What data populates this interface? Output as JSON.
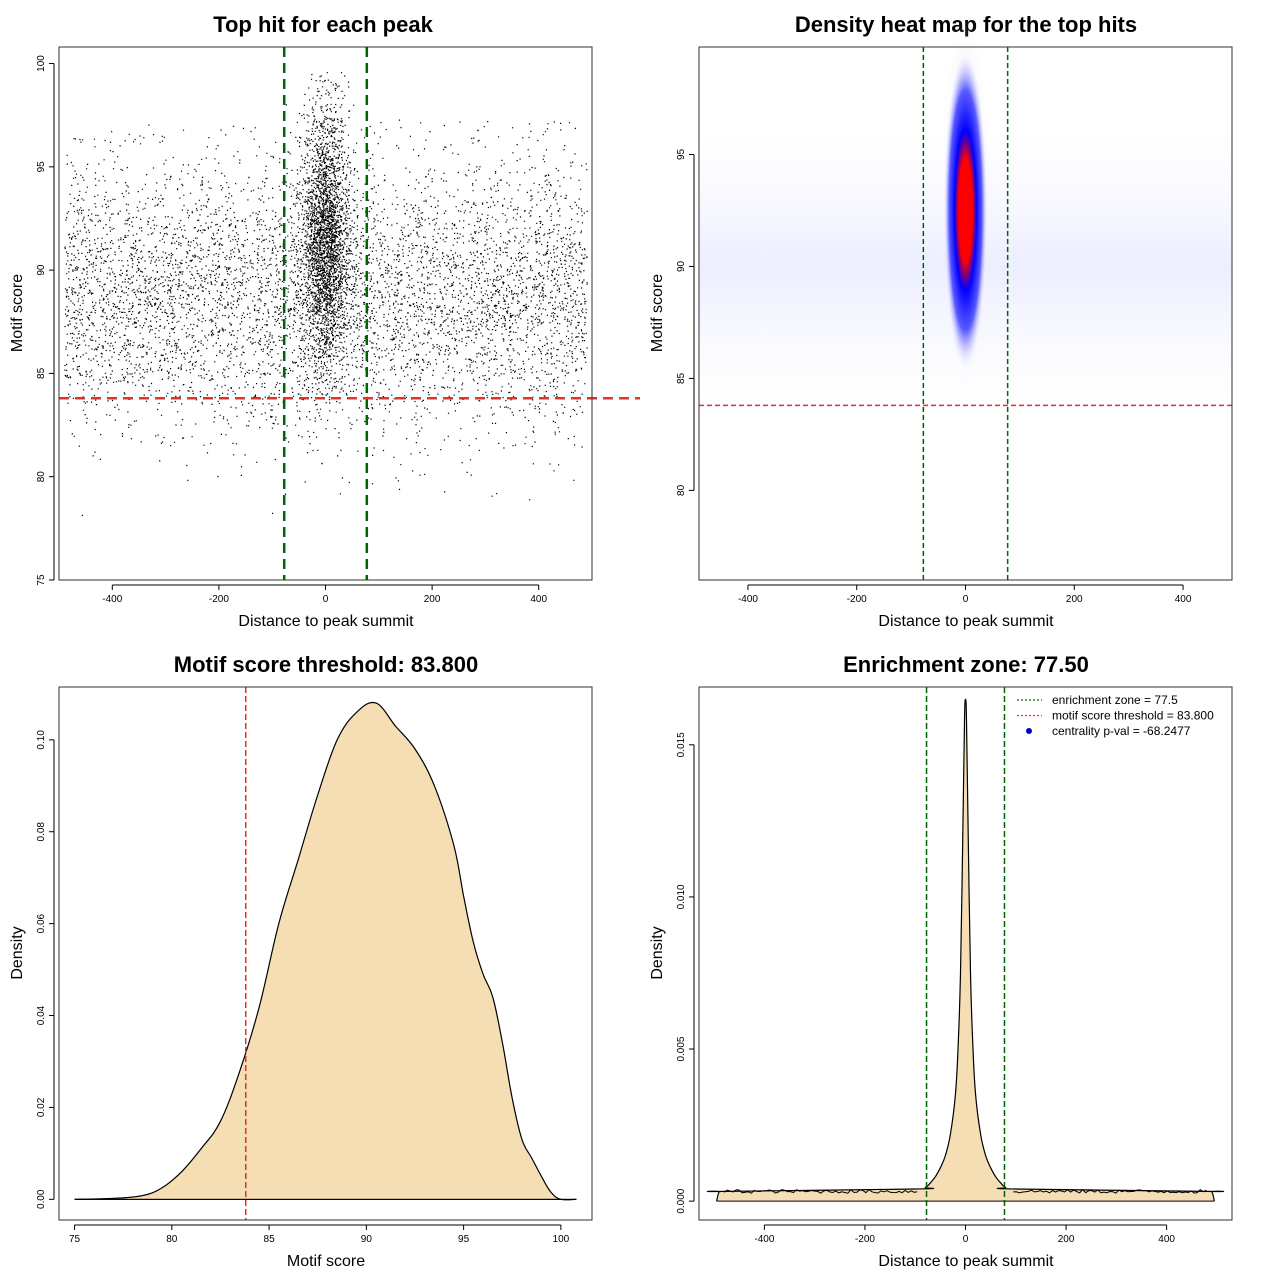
{
  "chart_data": [
    {
      "id": "p1",
      "type": "scatter",
      "title": "Top hit for each peak",
      "xlabel": "Distance to peak summit",
      "ylabel": "Motif score",
      "xlim": [
        -500,
        500
      ],
      "ylim": [
        75,
        100.8
      ],
      "xticks": [
        -400,
        -200,
        0,
        200,
        400
      ],
      "xtick_labels": [
        "-400",
        "-200",
        "0",
        "200",
        "400"
      ],
      "yticks": [
        75,
        80,
        85,
        90,
        95,
        100
      ],
      "ytick_labels": [
        "75",
        "80",
        "85",
        "90",
        "95",
        "100"
      ],
      "threshold_y": 83.8,
      "zone_x": [
        -77.5,
        77.5
      ],
      "point_color": "#000000",
      "threshold_color": "#e03030",
      "zone_color": "#006400",
      "note": "approx. 20000 hits; central dense column |x| < 80, score 84-99.5; background uniform over x with score 78-97"
    },
    {
      "id": "p2",
      "type": "heatmap",
      "title": "Density heat map for the top hits",
      "xlabel": "Distance to peak summit",
      "ylabel": "Motif score",
      "xlim": [
        -490,
        490
      ],
      "ylim": [
        76,
        99.8
      ],
      "xticks": [
        -400,
        -200,
        0,
        200,
        400
      ],
      "xtick_labels": [
        "-400",
        "-200",
        "0",
        "200",
        "400"
      ],
      "yticks": [
        80,
        85,
        90,
        95
      ],
      "ytick_labels": [
        "80",
        "85",
        "90",
        "95"
      ],
      "threshold_y": 83.8,
      "zone_x": [
        -77.5,
        77.5
      ],
      "peak": {
        "x": 0,
        "y": 92.5
      },
      "colors": [
        "#ffffff",
        "#0000ff",
        "#ff0000"
      ],
      "threshold_color": "#e03030",
      "zone_color": "#006400"
    },
    {
      "id": "p3",
      "type": "area",
      "title": "Motif score threshold: 83.800",
      "xlabel": "Motif score",
      "ylabel": "Density",
      "xlim": [
        74.2,
        101.6
      ],
      "ylim": [
        -0.0045,
        0.1115
      ],
      "xticks": [
        75,
        80,
        85,
        90,
        95,
        100
      ],
      "xtick_labels": [
        "75",
        "80",
        "85",
        "90",
        "95",
        "100"
      ],
      "yticks": [
        0,
        0.02,
        0.04,
        0.06,
        0.08,
        0.1
      ],
      "ytick_labels": [
        "0.00",
        "0.02",
        "0.04",
        "0.06",
        "0.08",
        "0.10"
      ],
      "threshold_x": 83.8,
      "fill_color": "#f5deb3",
      "threshold_color": "#e03030",
      "x": [
        75.0,
        77.0,
        78.5,
        79.5,
        80.5,
        81.5,
        82.5,
        83.5,
        84.5,
        85.5,
        86.5,
        87.5,
        88.5,
        89.5,
        90.5,
        91.5,
        92.5,
        93.5,
        94.5,
        95.0,
        95.5,
        96.0,
        96.5,
        97.0,
        97.5,
        98.0,
        98.5,
        99.0,
        99.5,
        100.0,
        100.8
      ],
      "y": [
        0.0,
        0.0002,
        0.0008,
        0.0025,
        0.006,
        0.011,
        0.017,
        0.028,
        0.042,
        0.06,
        0.074,
        0.088,
        0.1,
        0.106,
        0.108,
        0.103,
        0.098,
        0.09,
        0.077,
        0.066,
        0.056,
        0.049,
        0.044,
        0.034,
        0.022,
        0.013,
        0.009,
        0.005,
        0.0015,
        0.0,
        0.0
      ]
    },
    {
      "id": "p4",
      "type": "area",
      "title": "Enrichment zone: 77.50",
      "xlabel": "Distance to peak summit",
      "ylabel": "Density",
      "xlim": [
        -530,
        530
      ],
      "ylim": [
        -0.00062,
        0.0169
      ],
      "xticks": [
        -400,
        -200,
        0,
        200,
        400
      ],
      "xtick_labels": [
        "-400",
        "-200",
        "0",
        "200",
        "400"
      ],
      "yticks": [
        0,
        0.005,
        0.01,
        0.015
      ],
      "ytick_labels": [
        "0.000",
        "0.005",
        "0.010",
        "0.015"
      ],
      "zone_x": [
        -77.5,
        77.5
      ],
      "fill_color": "#f5deb3",
      "zone_color": "#006400",
      "threshold_color": "#e03030",
      "point_color": "#0000cc",
      "x": [
        -495,
        -490,
        -480,
        -100,
        -80,
        -70,
        -60,
        -50,
        -40,
        -30,
        -20,
        -15,
        -10,
        -5,
        -2,
        0,
        2,
        5,
        10,
        15,
        20,
        30,
        40,
        50,
        60,
        70,
        80,
        100,
        480,
        490,
        495
      ],
      "y": [
        0.0,
        0.0003,
        0.00032,
        0.0004,
        0.00045,
        0.0006,
        0.0008,
        0.0011,
        0.0015,
        0.0022,
        0.0035,
        0.005,
        0.0075,
        0.0125,
        0.0158,
        0.0165,
        0.0158,
        0.0125,
        0.0075,
        0.005,
        0.0035,
        0.0022,
        0.0015,
        0.0011,
        0.0008,
        0.0006,
        0.00045,
        0.0004,
        0.00032,
        0.0003,
        0.0
      ],
      "legend": [
        {
          "label": "enrichment zone = 77.5",
          "style": "dotted",
          "color": "#006400"
        },
        {
          "label": "motif score threshold = 83.800",
          "style": "dotted",
          "color": "#e03030"
        },
        {
          "label": "centrality p-val = -68.2477",
          "style": "point",
          "color": "#0000cc"
        }
      ],
      "legend_position": "top-right"
    }
  ]
}
